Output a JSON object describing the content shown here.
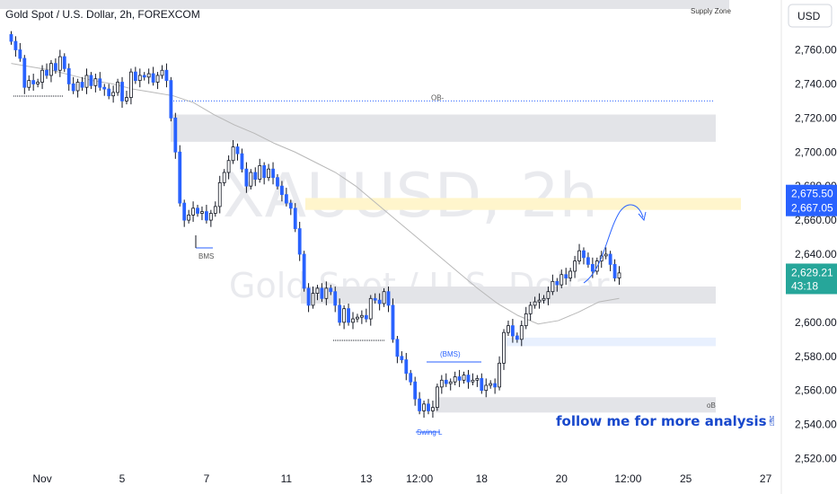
{
  "header": {
    "title": "Gold Spot / U.S. Dollar, 2h, FOREXCOM",
    "currency_button": "USD"
  },
  "watermark": {
    "symbol": "XAUUSD, 2h",
    "name": "Gold Spot / U.S. Dollar"
  },
  "annotations": {
    "supply_zone": "Supply Zone",
    "ob_upper": "OB-",
    "ob_lower": "oB",
    "bms_left": "BMS",
    "bms_center": "(BMS)",
    "swing_low": "Swing L",
    "follow": "follow me for more analysis✌"
  },
  "price_tags": {
    "upper": "2,675.50",
    "lower": "2,667.05",
    "current": "2,629.21",
    "countdown": "43:18",
    "tag_color": "#2962ff",
    "current_color": "#26a69a"
  },
  "chart_data": {
    "type": "candlestick",
    "title": "Gold Spot / U.S. Dollar, 2h, FOREXCOM",
    "ylim": [
      2515,
      2795
    ],
    "y_ticks": [
      "2,520.00",
      "2,540.00",
      "2,560.00",
      "2,580.00",
      "2,600.00",
      "2,620.00",
      "2,640.00",
      "2,660.00",
      "2,680.00",
      "2,700.00",
      "2,720.00",
      "2,740.00",
      "2,760.00"
    ],
    "y_tick_values": [
      2520,
      2540,
      2560,
      2580,
      2600,
      2620,
      2640,
      2660,
      2680,
      2700,
      2720,
      2740,
      2760
    ],
    "x_ticks": [
      "Nov",
      "5",
      "7",
      "11",
      "13",
      "12:00",
      "18",
      "20",
      "12:00",
      "25",
      "27"
    ],
    "x_tick_bars": [
      7,
      25,
      44,
      62,
      80,
      92,
      106,
      124,
      139,
      152,
      170
    ],
    "total_bars": 172,
    "series": [
      {
        "name": "XAUUSD",
        "close": [
          2765,
          2760,
          2755,
          2738,
          2742,
          2740,
          2741,
          2748,
          2745,
          2752,
          2748,
          2756,
          2749,
          2740,
          2736,
          2741,
          2738,
          2745,
          2739,
          2743,
          2738,
          2737,
          2733,
          2735,
          2741,
          2730,
          2732,
          2747,
          2742,
          2745,
          2744,
          2746,
          2741,
          2745,
          2748,
          2742,
          2720,
          2700,
          2670,
          2660,
          2663,
          2667,
          2664,
          2665,
          2660,
          2664,
          2668,
          2682,
          2688,
          2695,
          2703,
          2699,
          2690,
          2680,
          2688,
          2684,
          2692,
          2685,
          2690,
          2685,
          2680,
          2675,
          2670,
          2667,
          2655,
          2640,
          2620,
          2610,
          2617,
          2620,
          2614,
          2620,
          2618,
          2610,
          2600,
          2608,
          2600,
          2602,
          2603,
          2604,
          2602,
          2614,
          2613,
          2611,
          2618,
          2610,
          2590,
          2580,
          2578,
          2570,
          2565,
          2555,
          2548,
          2552,
          2548,
          2550,
          2562,
          2566,
          2564,
          2565,
          2568,
          2566,
          2569,
          2565,
          2566,
          2567,
          2560,
          2563,
          2564,
          2562,
          2576,
          2594,
          2598,
          2592,
          2590,
          2598,
          2605,
          2610,
          2612,
          2613,
          2614,
          2618,
          2624,
          2622,
          2628,
          2626,
          2630,
          2636,
          2642,
          2638,
          2634,
          2630,
          2636,
          2639,
          2640,
          2634,
          2626,
          2629
        ]
      },
      {
        "name": "Moving average",
        "values": [
          2752,
          2750,
          2748,
          2745,
          2742,
          2740,
          2737,
          2735,
          2733,
          2729,
          2722,
          2716,
          2711,
          2705,
          2700,
          2694,
          2688,
          2680,
          2670,
          2660,
          2650,
          2640,
          2630,
          2620,
          2611,
          2604,
          2599,
          2601,
          2606,
          2612,
          2614
        ]
      }
    ],
    "zones": [
      {
        "label": "Supply Zone",
        "from": 2784,
        "to": 2795
      },
      {
        "label": "",
        "from": 2706,
        "to": 2722
      },
      {
        "label": "",
        "from": 2666,
        "to": 2673
      },
      {
        "label": "",
        "from": 2611,
        "to": 2621
      },
      {
        "label": "",
        "from": 2586,
        "to": 2591
      },
      {
        "label": "oB",
        "from": 2547,
        "to": 2556
      }
    ],
    "levels": [
      {
        "label": "OB-",
        "value": 2730
      }
    ],
    "grid": false,
    "legend": "none"
  }
}
